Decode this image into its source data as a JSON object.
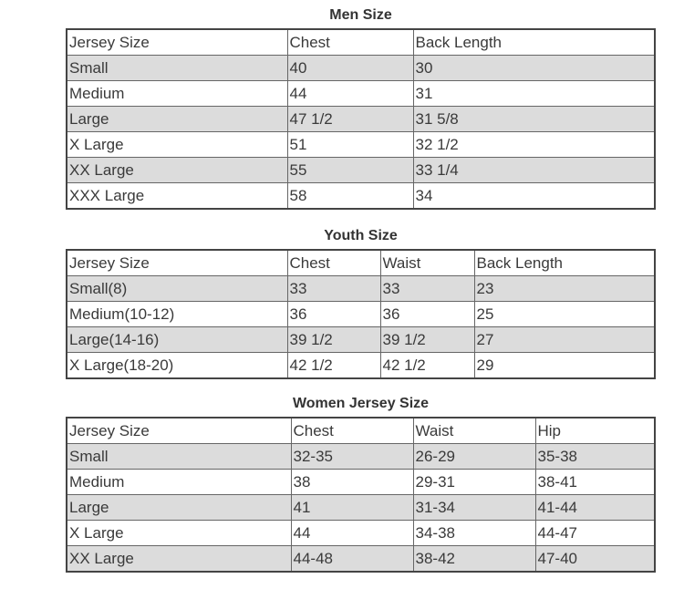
{
  "tables": [
    {
      "title": "Men Size",
      "headers": [
        "Jersey Size",
        "Chest",
        "Back Length"
      ],
      "rows": [
        [
          "Small",
          "40",
          "30"
        ],
        [
          "Medium",
          "44",
          "31"
        ],
        [
          "Large",
          "47 1/2",
          "31 5/8"
        ],
        [
          "X Large",
          "51",
          "32 1/2"
        ],
        [
          "XX Large",
          "55",
          "33 1/4"
        ],
        [
          "XXX Large",
          "58",
          "34"
        ]
      ]
    },
    {
      "title": "Youth Size",
      "headers": [
        "Jersey Size",
        "Chest",
        "Waist",
        "Back Length"
      ],
      "rows": [
        [
          "Small(8)",
          "33",
          "33",
          "23"
        ],
        [
          "Medium(10-12)",
          "36",
          "36",
          "25"
        ],
        [
          "Large(14-16)",
          "39 1/2",
          "39 1/2",
          "27"
        ],
        [
          "X Large(18-20)",
          "42 1/2",
          "42 1/2",
          "29"
        ]
      ]
    },
    {
      "title": "Women Jersey Size",
      "headers": [
        "Jersey Size",
        "Chest",
        "Waist",
        "Hip"
      ],
      "rows": [
        [
          "Small",
          "32-35",
          "26-29",
          "35-38"
        ],
        [
          "Medium",
          "38",
          "29-31",
          "38-41"
        ],
        [
          "Large",
          "41",
          "31-34",
          "41-44"
        ],
        [
          "X Large",
          "44",
          "34-38",
          "44-47"
        ],
        [
          "XX Large",
          "44-48",
          "38-42",
          "47-40"
        ]
      ]
    }
  ],
  "colors": {
    "alt_row": "#dcdcdc",
    "border": "#444444",
    "text": "#333333"
  }
}
